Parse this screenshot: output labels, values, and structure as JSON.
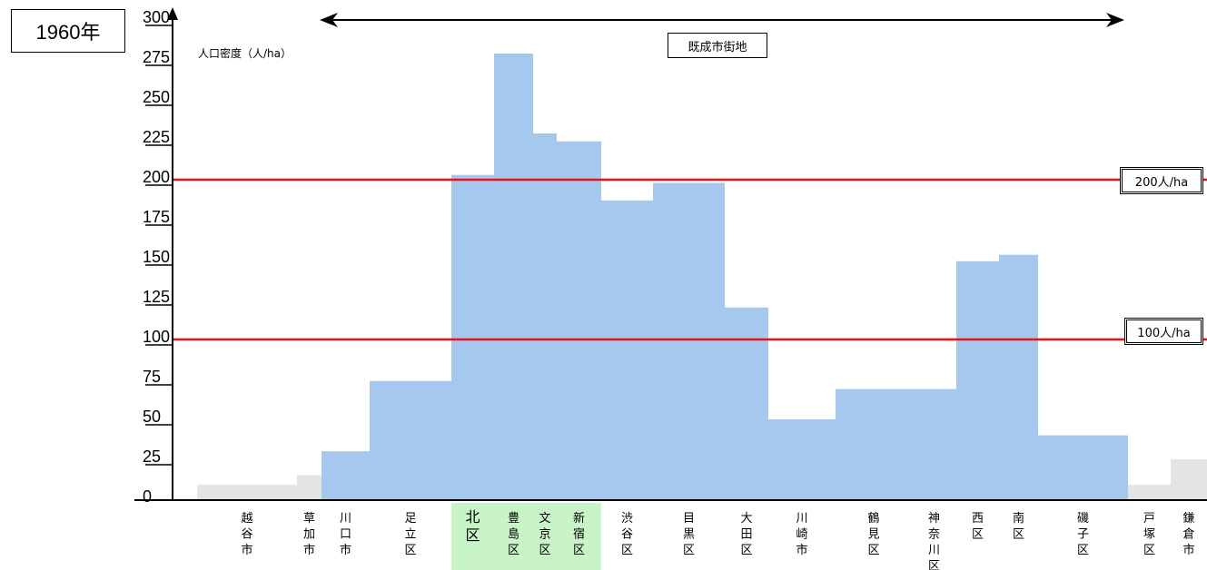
{
  "year_label": "1960年",
  "region_label": "既成市街地",
  "chart_data": {
    "type": "bar",
    "title": "",
    "xlabel": "",
    "ylabel": "人口密度（人/ha）",
    "ylim": [
      0,
      300
    ],
    "yticks": [
      0,
      25,
      50,
      75,
      100,
      125,
      150,
      175,
      200,
      225,
      250,
      275,
      300
    ],
    "reference_lines": [
      {
        "value": 200,
        "label": "200人/ha",
        "color": "#ee1111"
      },
      {
        "value": 100,
        "label": "100人/ha",
        "color": "#ee1111"
      }
    ],
    "colors": {
      "inside": "#a6c8ee",
      "outside": "#e4e4e4",
      "highlight": "#c8f4c8"
    },
    "categories": [
      "越谷市",
      "草加市",
      "川口市",
      "足立区",
      "北区",
      "豊島区",
      "文京区",
      "新宿区",
      "渋谷区",
      "目黒区",
      "大田区",
      "川崎市",
      "鶴見区",
      "神奈川区",
      "西区",
      "南区",
      "磯子区",
      "戸塚区",
      "鎌倉市"
    ],
    "category_labels": [
      "越谷市",
      "草加市",
      "川口市",
      "足立区",
      "北区",
      "豊島区",
      "文京区",
      "新宿区",
      "渋谷区",
      "目黒区",
      "大田区",
      "川崎市",
      "鶴見区",
      "神奈川区",
      "西区",
      "南区",
      "磯子区",
      "戸塚区",
      "鎌倉市"
    ],
    "values": [
      9,
      15,
      30,
      74,
      203,
      279,
      229,
      224,
      187,
      198,
      120,
      50,
      69,
      69,
      149,
      153,
      40,
      9,
      25
    ],
    "inside_built_up_area": [
      false,
      false,
      true,
      true,
      true,
      true,
      true,
      true,
      true,
      true,
      true,
      true,
      true,
      true,
      true,
      true,
      true,
      false,
      false
    ],
    "highlighted_labels": [
      "北区",
      "豊島区",
      "文京区",
      "新宿区"
    ]
  }
}
